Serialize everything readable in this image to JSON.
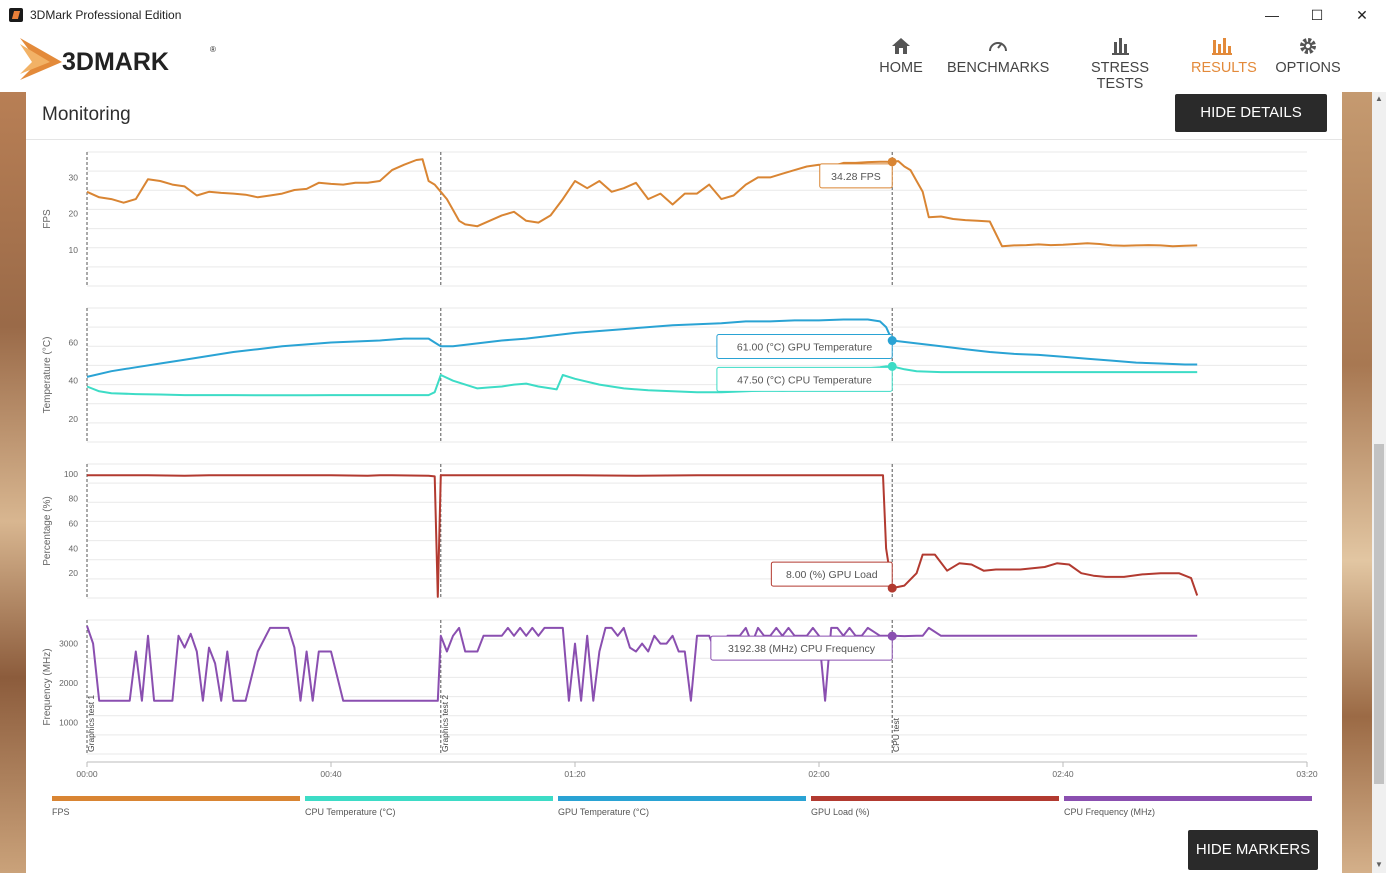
{
  "window": {
    "title": "3DMark Professional Edition",
    "min": "—",
    "max": "☐",
    "close": "✕"
  },
  "brand": {
    "name": "3DMARK",
    "mark": "®"
  },
  "nav": [
    {
      "label": "HOME",
      "icon": "home-icon",
      "active": false
    },
    {
      "label": "BENCHMARKS",
      "icon": "gauge-icon",
      "active": false
    },
    {
      "label": "STRESS TESTS",
      "icon": "bars-icon",
      "active": false
    },
    {
      "label": "RESULTS",
      "icon": "results-chart-icon",
      "active": true
    },
    {
      "label": "OPTIONS",
      "icon": "gear-icon",
      "active": false
    }
  ],
  "monitoring": {
    "title": "Monitoring",
    "hide_details": "HIDE DETAILS",
    "hide_markers": "HIDE MARKERS"
  },
  "colors": {
    "fps": "#d98533",
    "cpu_temp": "#3ddcc6",
    "gpu_temp": "#2aa3d4",
    "gpu_load": "#b23a30",
    "cpu_freq": "#8a4fb0",
    "accent": "#e38a3a"
  },
  "chart_data": {
    "type": "line",
    "x_unit": "mm:ss",
    "x_ticks": [
      "00:00",
      "00:40",
      "01:20",
      "02:00",
      "02:40",
      "03:20"
    ],
    "markers": [
      {
        "label": "Graphics test 1",
        "t": 0
      },
      {
        "label": "Graphics test 2",
        "t": 58
      },
      {
        "label": "CPU test",
        "t": 132
      }
    ],
    "panels": [
      {
        "ylabel": "FPS",
        "ylim": [
          0,
          37
        ],
        "ticks": [
          10,
          20,
          30
        ],
        "series": [
          {
            "name": "FPS",
            "color": "#d98533",
            "t": [
              0,
              2,
              4,
              6,
              8,
              10,
              12,
              14,
              16,
              18,
              20,
              22,
              24,
              26,
              28,
              30,
              32,
              34,
              36,
              38,
              40,
              42,
              44,
              46,
              48,
              50,
              52,
              54,
              55,
              56,
              57,
              58,
              59,
              60,
              61,
              62,
              64,
              66,
              68,
              70,
              72,
              74,
              76,
              78,
              80,
              82,
              84,
              86,
              88,
              90,
              92,
              94,
              96,
              98,
              100,
              102,
              104,
              106,
              108,
              110,
              112,
              114,
              116,
              118,
              120,
              122,
              124,
              126,
              128,
              130,
              131,
              132,
              133,
              134,
              135,
              136,
              137,
              138,
              140,
              142,
              144,
              146,
              148,
              150,
              152,
              154,
              156,
              158,
              160,
              162,
              164,
              166,
              168,
              170,
              172,
              174,
              176,
              178,
              180,
              182
            ],
            "v": [
              26,
              24.5,
              24,
              23,
              24,
              29.5,
              29,
              28,
              27.5,
              25,
              26,
              25.7,
              25.5,
              25.2,
              24.5,
              25,
              25.5,
              26.5,
              26.8,
              28.5,
              28.2,
              28,
              28.5,
              28.5,
              29,
              32,
              33.5,
              34.8,
              35,
              29,
              28,
              26,
              24,
              21,
              18,
              17,
              16.5,
              18,
              19.5,
              20.5,
              18,
              17.5,
              19.5,
              24,
              29,
              27,
              29,
              26,
              27,
              28.5,
              24,
              25.5,
              22.5,
              25.5,
              25.5,
              28,
              24,
              25,
              28,
              30,
              30,
              31,
              32,
              33,
              33.5,
              33,
              34,
              34,
              34.2,
              34.3,
              34.3,
              34.28,
              34.5,
              33,
              32,
              29,
              26,
              19,
              19.2,
              18.5,
              18.2,
              18,
              17.8,
              11,
              11.2,
              11.3,
              11.5,
              11.3,
              11.4,
              11.6,
              11.8,
              11.6,
              11.2,
              11.1,
              11.2,
              11.3,
              11.2,
              11.0,
              11.1,
              11.2
            ]
          }
        ],
        "tooltips": [
          {
            "text": "34.28 FPS",
            "t": 132,
            "v": 34.28,
            "color": "#d98533"
          }
        ]
      },
      {
        "ylabel": "Temperature (°C)",
        "ylim": [
          8,
          78
        ],
        "ticks": [
          20,
          40,
          60
        ],
        "series": [
          {
            "name": "GPU Temperature",
            "color": "#2aa3d4",
            "t": [
              0,
              4,
              8,
              12,
              16,
              20,
              24,
              28,
              32,
              36,
              40,
              44,
              48,
              52,
              56,
              57,
              58,
              60,
              64,
              68,
              72,
              76,
              80,
              84,
              88,
              92,
              96,
              100,
              104,
              108,
              112,
              116,
              120,
              124,
              128,
              130,
              131,
              132,
              136,
              140,
              144,
              148,
              152,
              156,
              160,
              164,
              168,
              172,
              176,
              180,
              182
            ],
            "v": [
              42,
              45,
              47,
              49,
              51,
              53,
              55,
              56.5,
              58,
              59,
              60,
              60.5,
              61,
              62,
              62,
              60,
              58,
              58,
              59.5,
              61,
              62,
              63.5,
              65,
              66,
              67,
              68,
              69,
              69.5,
              70,
              71,
              71,
              71.5,
              71.5,
              72,
              72,
              71,
              68,
              61,
              59.5,
              58,
              56.5,
              55,
              54,
              53.5,
              52.5,
              51.5,
              50.5,
              49.5,
              49,
              48.5,
              48.5
            ]
          },
          {
            "name": "CPU Temperature",
            "color": "#3ddcc6",
            "t": [
              0,
              2,
              4,
              8,
              12,
              16,
              20,
              24,
              28,
              32,
              36,
              40,
              44,
              48,
              52,
              56,
              57,
              58,
              60,
              64,
              66,
              68,
              70,
              72,
              74,
              76,
              77,
              78,
              80,
              84,
              88,
              92,
              96,
              100,
              104,
              106,
              108,
              110,
              112,
              114,
              116,
              120,
              124,
              128,
              130,
              131,
              132,
              134,
              136,
              140,
              150,
              160,
              170,
              182
            ],
            "v": [
              37,
              34.5,
              33.5,
              33,
              32.8,
              32.5,
              32.5,
              32.5,
              32.4,
              32.4,
              32.4,
              32.5,
              32.5,
              32.5,
              32.5,
              32.5,
              34,
              43,
              40,
              36,
              36.5,
              37,
              38,
              38.5,
              37,
              36,
              35.5,
              43,
              41,
              38,
              36,
              35,
              34.5,
              34,
              34,
              34.2,
              34.5,
              34.8,
              35,
              34.8,
              35,
              45,
              46,
              46.5,
              47,
              47.5,
              47.5,
              46,
              45,
              44.5,
              44.5,
              44.5,
              44.5,
              44.5
            ]
          }
        ],
        "tooltips": [
          {
            "text": "61.00 (°C) GPU Temperature",
            "t": 132,
            "v": 61.0,
            "color": "#2aa3d4"
          },
          {
            "text": "47.50 (°C) CPU Temperature",
            "t": 132,
            "v": 47.5,
            "color": "#3ddcc6"
          }
        ]
      },
      {
        "ylabel": "Percentage (%)",
        "ylim": [
          0,
          108
        ],
        "ticks": [
          20,
          40,
          60,
          80,
          100
        ],
        "series": [
          {
            "name": "GPU Load",
            "color": "#b23a30",
            "t": [
              0,
              10,
              16,
              20,
              30,
              40,
              46,
              48,
              50,
              56,
              57,
              57.5,
              58,
              60,
              64,
              70,
              80,
              90,
              100,
              110,
              116,
              120,
              128,
              130.5,
              131,
              132,
              134,
              136,
              137,
              139,
              141,
              143,
              145,
              147,
              149,
              151,
              153,
              155,
              157,
              159,
              161,
              163,
              165,
              167,
              170,
              173,
              176,
              179,
              181,
              182
            ],
            "v": [
              99,
              99,
              98.5,
              99,
              99,
              99,
              98.5,
              99,
              99,
              98.5,
              98,
              1,
              99,
              99,
              99,
              99,
              99,
              98.5,
              99,
              99,
              99,
              99,
              99,
              99,
              40,
              8,
              10,
              20,
              35,
              35,
              22,
              28,
              27,
              22,
              23,
              23,
              23,
              24,
              25,
              28,
              27,
              20,
              18,
              17,
              17,
              19,
              20,
              20,
              16,
              2
            ]
          }
        ],
        "tooltips": [
          {
            "text": "8.00 (%) GPU Load",
            "t": 132,
            "v": 8.0,
            "color": "#b23a30"
          }
        ]
      },
      {
        "ylabel": "Frequency (MHz)",
        "ylim": [
          200,
          3600
        ],
        "ticks": [
          1000,
          2000,
          3000
        ],
        "series": [
          {
            "name": "CPU Frequency",
            "color": "#8a4fb0",
            "t": [
              0,
              1,
              2,
              4,
              6,
              6.5,
              7,
              8,
              9,
              10,
              11,
              12,
              14,
              15,
              16,
              17,
              18,
              19,
              20,
              21,
              22,
              23,
              24,
              25,
              26,
              28,
              30,
              31,
              32,
              33,
              34,
              35,
              36,
              37,
              38,
              40,
              42,
              44,
              46,
              48,
              50,
              52,
              54,
              56,
              57.5,
              58,
              59,
              60,
              61,
              62,
              63,
              64,
              65,
              66,
              68,
              69,
              70,
              71,
              72,
              73,
              74,
              75,
              76,
              78,
              79,
              80,
              81,
              82,
              83,
              84,
              85,
              86,
              87,
              88,
              89,
              90,
              91,
              92,
              93,
              94,
              95,
              96,
              97,
              98,
              99,
              100,
              101,
              102,
              103,
              104,
              105,
              106,
              107,
              108,
              109,
              110,
              111,
              112,
              113,
              114,
              115,
              116,
              117,
              118,
              119,
              120,
              121,
              122,
              123,
              124,
              125,
              126,
              127,
              128,
              129,
              130,
              131,
              132,
              134,
              136,
              137,
              138,
              140,
              150,
              160,
              170,
              182
            ],
            "v": [
              3450,
              3000,
              1550,
              1550,
              1550,
              1550,
              1550,
              2800,
              1550,
              3200,
              1550,
              1550,
              1550,
              3200,
              2900,
              3250,
              2800,
              1550,
              2900,
              2500,
              1550,
              2800,
              1550,
              1550,
              1550,
              2800,
              3400,
              3400,
              3400,
              3400,
              2900,
              1550,
              2800,
              1550,
              2800,
              2800,
              1550,
              1550,
              1550,
              1550,
              1550,
              1550,
              1550,
              1550,
              1550,
              3200,
              2800,
              3200,
              3400,
              2800,
              2800,
              2800,
              3200,
              3200,
              3200,
              3400,
              3200,
              3400,
              3200,
              3400,
              3200,
              3400,
              3400,
              3400,
              1550,
              3000,
              1550,
              3200,
              1550,
              2800,
              3400,
              3400,
              3200,
              3400,
              2900,
              2800,
              3000,
              2800,
              3200,
              3000,
              3000,
              3200,
              2800,
              2800,
              1550,
              3200,
              3200,
              3200,
              2800,
              2800,
              3200,
              3200,
              3200,
              3400,
              3000,
              3400,
              3200,
              3200,
              3400,
              3200,
              3400,
              3200,
              3200,
              3200,
              3400,
              3200,
              1550,
              3400,
              3400,
              3200,
              3400,
              3200,
              3200,
              3400,
              3300,
              3200,
              3200,
              3200,
              3192.38,
              3200,
              3200,
              3400,
              3200,
              3200,
              3200,
              3200,
              3200,
              3200
            ]
          }
        ],
        "tooltips": [
          {
            "text": "3192.38 (MHz) CPU Frequency",
            "t": 132,
            "v": 3192.38,
            "color": "#8a4fb0"
          }
        ]
      }
    ],
    "legend": [
      {
        "name": "FPS",
        "color": "#d98533"
      },
      {
        "name": "CPU Temperature (°C)",
        "color": "#3ddcc6"
      },
      {
        "name": "GPU Temperature (°C)",
        "color": "#2aa3d4"
      },
      {
        "name": "GPU Load (%)",
        "color": "#b23a30"
      },
      {
        "name": "CPU Frequency (MHz)",
        "color": "#8a4fb0"
      }
    ]
  }
}
